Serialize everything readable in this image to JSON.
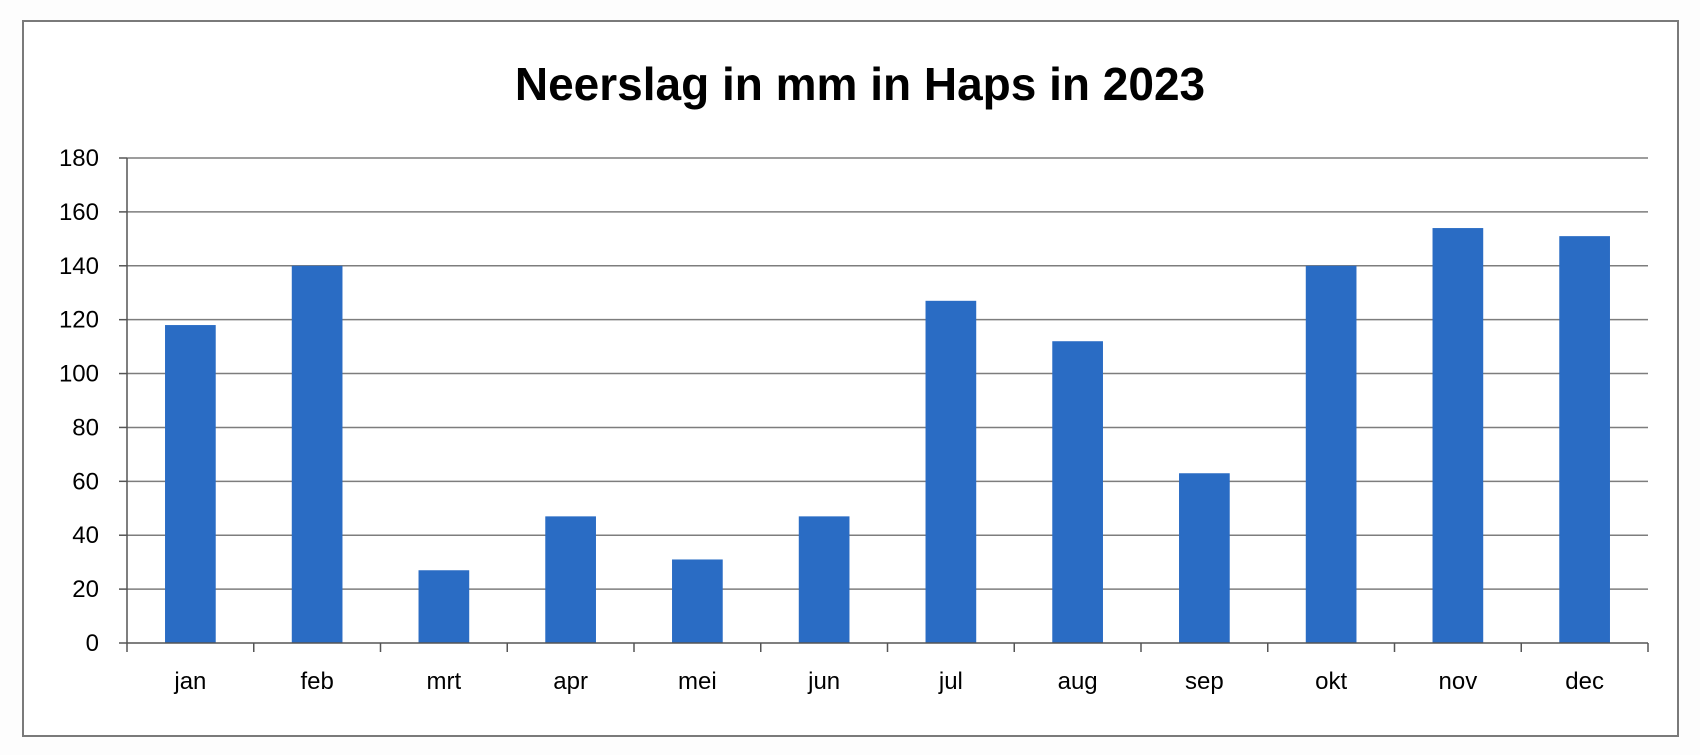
{
  "chart_data": {
    "type": "bar",
    "title": "Neerslag in mm in Haps in 2023",
    "xlabel": "",
    "ylabel": "",
    "categories": [
      "jan",
      "feb",
      "mrt",
      "apr",
      "mei",
      "jun",
      "jul",
      "aug",
      "sep",
      "okt",
      "nov",
      "dec"
    ],
    "values": [
      118,
      140,
      27,
      47,
      31,
      47,
      127,
      112,
      63,
      140,
      154,
      151
    ],
    "ylim": [
      0,
      180
    ],
    "yticks": [
      "0",
      "20",
      "40",
      "60",
      "80",
      "100",
      "120",
      "140",
      "160",
      "180"
    ],
    "grid": true,
    "legend": "none",
    "bar_color": "#2a6cc4",
    "grid_color": "#7d7d7d"
  }
}
